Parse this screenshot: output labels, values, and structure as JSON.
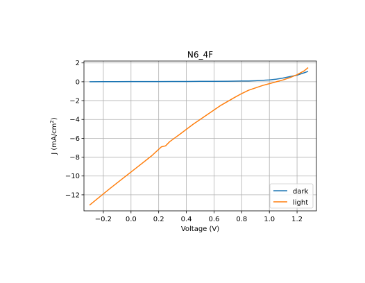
{
  "chart_data": {
    "type": "line",
    "title": "N6_4F",
    "xlabel": "Voltage (V)",
    "ylabel_main": "J (mA/cm",
    "ylabel_sup": "2",
    "ylabel_end": ")",
    "xlim": [
      -0.34,
      1.34
    ],
    "ylim": [
      -13.7,
      2.2
    ],
    "xticks": [
      -0.2,
      0.0,
      0.2,
      0.4,
      0.6,
      0.8,
      1.0,
      1.2
    ],
    "xtick_labels": [
      "−0.2",
      "0.0",
      "0.2",
      "0.4",
      "0.6",
      "0.8",
      "1.0",
      "1.2"
    ],
    "yticks": [
      2,
      0,
      -2,
      -4,
      -6,
      -8,
      -10,
      -12
    ],
    "ytick_labels": [
      "2",
      "0",
      "−2",
      "−4",
      "−6",
      "−8",
      "−10",
      "−12"
    ],
    "grid": true,
    "legend_position": "lower-right",
    "series": [
      {
        "name": "dark",
        "color": "#1f77b4",
        "x": [
          -0.3,
          -0.2,
          -0.1,
          0.0,
          0.1,
          0.2,
          0.3,
          0.4,
          0.5,
          0.6,
          0.7,
          0.8,
          0.85,
          0.9,
          1.0,
          1.05,
          1.1,
          1.15,
          1.2,
          1.25,
          1.28
        ],
        "y": [
          0.0,
          0.01,
          0.01,
          0.02,
          0.02,
          0.02,
          0.03,
          0.03,
          0.04,
          0.05,
          0.06,
          0.08,
          0.08,
          0.11,
          0.2,
          0.28,
          0.4,
          0.55,
          0.7,
          0.95,
          1.1
        ]
      },
      {
        "name": "light",
        "color": "#ff7f0e",
        "x": [
          -0.3,
          -0.25,
          -0.15,
          -0.05,
          0.05,
          0.15,
          0.22,
          0.25,
          0.28,
          0.35,
          0.45,
          0.55,
          0.65,
          0.75,
          0.8,
          0.85,
          0.9,
          0.95,
          1.0,
          1.05,
          1.1,
          1.15,
          1.2,
          1.25,
          1.28
        ],
        "y": [
          -13.1,
          -12.5,
          -11.3,
          -10.15,
          -9.0,
          -7.85,
          -6.9,
          -6.8,
          -6.35,
          -5.6,
          -4.5,
          -3.5,
          -2.5,
          -1.65,
          -1.25,
          -0.9,
          -0.65,
          -0.4,
          -0.2,
          0.0,
          0.2,
          0.45,
          0.75,
          1.15,
          1.5
        ]
      }
    ]
  }
}
